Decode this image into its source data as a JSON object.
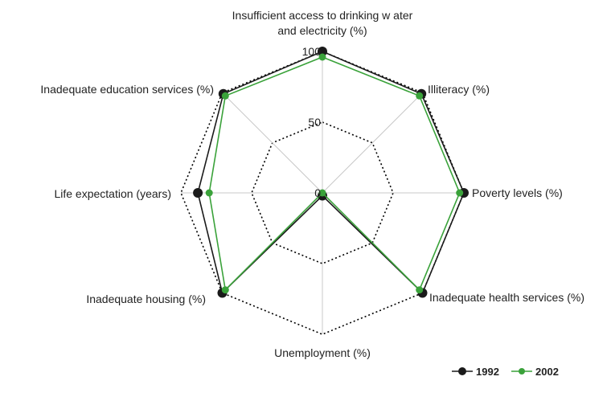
{
  "chart_data": {
    "type": "radar",
    "categories": [
      "Insufficient access to drinking w ater and electricity (%)",
      "Illiteracy (%)",
      "Poverty levels (%)",
      "Inadequate health services (%)",
      "Unemployment (%)",
      "Inadequate housing (%)",
      "Life expectation (years)",
      "Inadequate education services (%)"
    ],
    "category_lines": [
      [
        "Insufficient access to drinking w ater",
        "and electricity (%)"
      ],
      [
        "Illiteracy (%)"
      ],
      [
        "Poverty levels (%)"
      ],
      [
        "Inadequate health services (%)"
      ],
      [
        "Unemployment (%)"
      ],
      [
        "Inadequate housing (%)"
      ],
      [
        "Life expectation (years)"
      ],
      [
        "Inadequate education services (%)"
      ]
    ],
    "rlim": [
      0,
      100
    ],
    "ticks": [
      0,
      50,
      100
    ],
    "tick_labels": [
      "0",
      "50",
      "100"
    ],
    "series": [
      {
        "name": "1992",
        "color": "#1a1a1a",
        "values": [
          100,
          99,
          100,
          100,
          2,
          100,
          88,
          99
        ]
      },
      {
        "name": "2002",
        "color": "#3aa23a",
        "values": [
          96,
          97,
          97,
          97,
          0,
          97,
          80,
          97
        ]
      }
    ],
    "legend_position": "bottom-right"
  }
}
